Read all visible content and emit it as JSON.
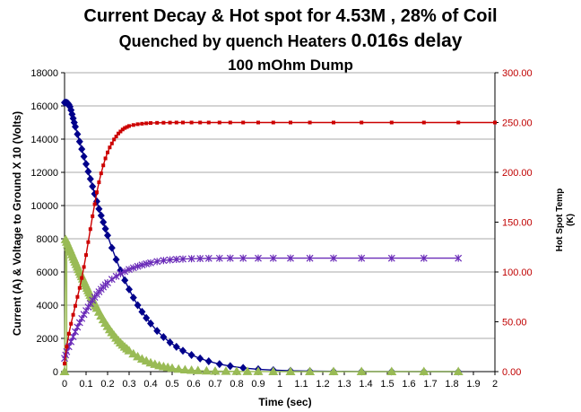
{
  "chart_data": {
    "type": "line",
    "title_lines": [
      {
        "text": "Current Decay & Hot spot for 4.53M , 28% of Coil",
        "size": 20
      },
      {
        "text": "Quenched by quench Heaters ",
        "size": 18,
        "suffix": "0.016s delay",
        "suffix_size": 21
      },
      {
        "text": "100 mOhm  Dump",
        "size": 17
      }
    ],
    "xlabel": "Time (sec)",
    "ylabel": "Current (A) & Voltage to Ground X 10 (Volts)",
    "y2label_lines": [
      "Hot Spot Temp",
      "(K)"
    ],
    "xlim": [
      0,
      2
    ],
    "ylim": [
      0,
      18000
    ],
    "y2lim": [
      0,
      300
    ],
    "x_ticks": [
      "0",
      "0.1",
      "0.2",
      "0.3",
      "0.4",
      "0.5",
      "0.6",
      "0.7",
      "0.8",
      "0.9",
      "1",
      "1.1",
      "1.2",
      "1.3",
      "1.4",
      "1.5",
      "1.6",
      "1.7",
      "1.8",
      "1.9",
      "2"
    ],
    "y_ticks": [
      "0",
      "2000",
      "4000",
      "6000",
      "8000",
      "10000",
      "12000",
      "14000",
      "16000",
      "18000"
    ],
    "y2_ticks": [
      "0.00",
      "50.00",
      "100.00",
      "150.00",
      "200.00",
      "250.00",
      "300.00"
    ],
    "grid": "horizontal",
    "legend": "none",
    "series": [
      {
        "id": "current",
        "axis": "left",
        "color": "#00008b",
        "marker": "diamond",
        "x": [
          0,
          0.005,
          0.01,
          0.015,
          0.02,
          0.025,
          0.03,
          0.035,
          0.04,
          0.045,
          0.05,
          0.06,
          0.07,
          0.08,
          0.09,
          0.1,
          0.11,
          0.12,
          0.13,
          0.14,
          0.15,
          0.16,
          0.17,
          0.18,
          0.19,
          0.2,
          0.22,
          0.24,
          0.26,
          0.28,
          0.3,
          0.32,
          0.34,
          0.36,
          0.38,
          0.4,
          0.43,
          0.46,
          0.49,
          0.52,
          0.55,
          0.59,
          0.63,
          0.67,
          0.72,
          0.77,
          0.83,
          0.9,
          0.97,
          1.05,
          1.14,
          1.25,
          1.38,
          1.52,
          1.67,
          1.83
        ],
        "y": [
          16200,
          16200,
          16190,
          16160,
          16080,
          15950,
          15750,
          15500,
          15250,
          15000,
          14750,
          14300,
          13850,
          13400,
          12950,
          12500,
          12050,
          11600,
          11150,
          10700,
          10250,
          9800,
          9400,
          9000,
          8600,
          8200,
          7450,
          6750,
          6100,
          5500,
          4950,
          4450,
          4000,
          3600,
          3230,
          2900,
          2450,
          2080,
          1760,
          1490,
          1260,
          1000,
          790,
          620,
          450,
          330,
          220,
          140,
          90,
          50,
          30,
          15,
          8,
          4,
          2,
          1
        ]
      },
      {
        "id": "voltage",
        "axis": "left",
        "color": "#99bb55",
        "marker": "triangle",
        "x": [
          0,
          0.005,
          0.01,
          0.015,
          0.02,
          0.025,
          0.03,
          0.035,
          0.04,
          0.045,
          0.05,
          0.055,
          0.06,
          0.065,
          0.07,
          0.075,
          0.08,
          0.085,
          0.09,
          0.095,
          0.1,
          0.105,
          0.11,
          0.115,
          0.12,
          0.125,
          0.13,
          0.135,
          0.14,
          0.145,
          0.15,
          0.16,
          0.17,
          0.18,
          0.19,
          0.2,
          0.21,
          0.22,
          0.23,
          0.24,
          0.25,
          0.26,
          0.27,
          0.28,
          0.29,
          0.3,
          0.32,
          0.34,
          0.36,
          0.38,
          0.4,
          0.42,
          0.44,
          0.46,
          0.48,
          0.5,
          0.53,
          0.56,
          0.59,
          0.62,
          0.66,
          0.7,
          0.75,
          0.8,
          0.85,
          0.9,
          0.97,
          1.05,
          1.14,
          1.25,
          1.38,
          1.52,
          1.67,
          1.83
        ],
        "y": [
          0,
          7950,
          7800,
          7650,
          7500,
          7350,
          7200,
          7050,
          6900,
          6750,
          6600,
          6450,
          6300,
          6150,
          6000,
          5860,
          5720,
          5580,
          5440,
          5300,
          5160,
          5020,
          4880,
          4740,
          4600,
          4470,
          4340,
          4210,
          4080,
          3950,
          3820,
          3580,
          3350,
          3130,
          2920,
          2720,
          2530,
          2350,
          2180,
          2020,
          1870,
          1730,
          1600,
          1480,
          1370,
          1260,
          1070,
          900,
          760,
          640,
          530,
          440,
          360,
          300,
          250,
          200,
          150,
          110,
          80,
          60,
          40,
          30,
          20,
          12,
          8,
          5,
          3,
          2,
          1,
          1,
          0,
          0,
          0,
          0
        ]
      },
      {
        "id": "voltage-step",
        "axis": "left",
        "color": "#99bb55",
        "marker": "none",
        "x": [
          0.01,
          0.01
        ],
        "y": [
          0,
          8100
        ]
      },
      {
        "id": "purple-curve",
        "axis": "left",
        "color": "#6a2bb8",
        "marker": "asterisk",
        "x": [
          0,
          0.005,
          0.01,
          0.02,
          0.03,
          0.04,
          0.05,
          0.06,
          0.07,
          0.08,
          0.09,
          0.1,
          0.11,
          0.12,
          0.13,
          0.14,
          0.15,
          0.16,
          0.17,
          0.18,
          0.19,
          0.2,
          0.22,
          0.24,
          0.26,
          0.28,
          0.3,
          0.32,
          0.34,
          0.36,
          0.38,
          0.4,
          0.43,
          0.46,
          0.49,
          0.52,
          0.55,
          0.59,
          0.63,
          0.67,
          0.72,
          0.77,
          0.83,
          0.9,
          0.97,
          1.05,
          1.14,
          1.25,
          1.38,
          1.52,
          1.67,
          1.83
        ],
        "y": [
          800,
          1000,
          1200,
          1500,
          1800,
          2100,
          2400,
          2680,
          2950,
          3200,
          3440,
          3670,
          3890,
          4100,
          4300,
          4480,
          4650,
          4810,
          4960,
          5100,
          5230,
          5350,
          5560,
          5740,
          5900,
          6030,
          6150,
          6250,
          6340,
          6420,
          6490,
          6550,
          6630,
          6690,
          6730,
          6760,
          6780,
          6800,
          6810,
          6820,
          6825,
          6830,
          6830,
          6830,
          6830,
          6830,
          6830,
          6830,
          6830,
          6830,
          6830,
          6830
        ]
      },
      {
        "id": "hot-spot-temp",
        "axis": "right",
        "color": "#cc0000",
        "marker": "square",
        "x": [
          0,
          0.01,
          0.02,
          0.03,
          0.04,
          0.05,
          0.06,
          0.07,
          0.08,
          0.09,
          0.1,
          0.11,
          0.12,
          0.13,
          0.14,
          0.15,
          0.16,
          0.17,
          0.18,
          0.19,
          0.2,
          0.21,
          0.22,
          0.23,
          0.24,
          0.25,
          0.26,
          0.27,
          0.28,
          0.29,
          0.3,
          0.32,
          0.34,
          0.36,
          0.38,
          0.4,
          0.43,
          0.46,
          0.49,
          0.52,
          0.55,
          0.59,
          0.63,
          0.67,
          0.72,
          0.77,
          0.83,
          0.9,
          0.97,
          1.05,
          1.14,
          1.25,
          1.38,
          1.52,
          1.67,
          1.83,
          2.0
        ],
        "y": [
          8,
          25,
          38,
          48,
          57,
          66,
          75,
          84,
          94,
          105,
          117,
          130,
          143,
          156,
          168,
          180,
          190,
          199,
          207,
          214,
          220,
          225,
          229,
          233,
          236,
          239,
          241,
          243,
          244.5,
          245.5,
          246.5,
          247.5,
          248.3,
          248.8,
          249.2,
          249.5,
          249.7,
          249.8,
          249.9,
          250,
          250,
          250,
          250,
          250,
          250,
          250,
          250,
          250,
          250,
          250,
          250,
          250,
          250,
          250,
          250,
          250,
          250
        ]
      }
    ]
  }
}
